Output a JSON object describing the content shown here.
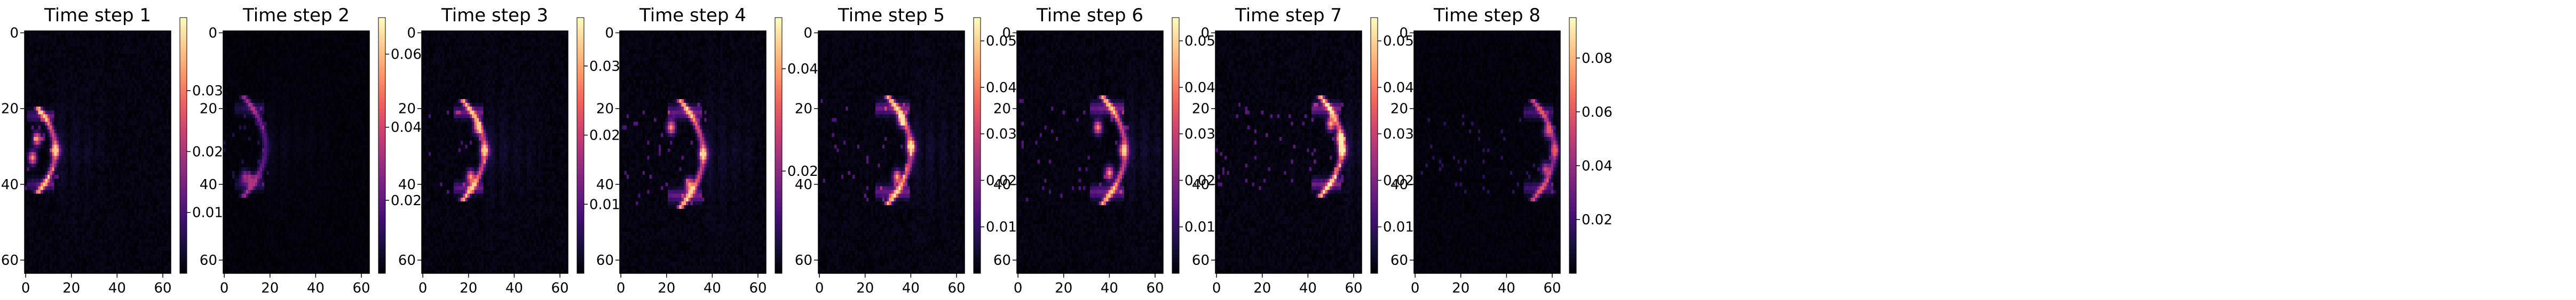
{
  "figure": {
    "colormap": "magma",
    "background": "#ffffff",
    "colors": {
      "cmap_stops": [
        "#000004",
        "#180f3d",
        "#440f76",
        "#721f81",
        "#9e2f7f",
        "#cd4071",
        "#f1605d",
        "#fd9668",
        "#feca8d",
        "#fcfdbf"
      ]
    }
  },
  "chart_data": [
    {
      "type": "heatmap",
      "title": "Time step 1",
      "grid_size": [
        64,
        64
      ],
      "xlim": [
        0,
        63
      ],
      "ylim": [
        63,
        0
      ],
      "y_inverted": true,
      "xticks": [
        0,
        20,
        40,
        60
      ],
      "yticks": [
        0,
        20,
        40,
        60
      ],
      "colorbar": {
        "vmin": 0.0,
        "vmax": 0.042,
        "ticks": [
          0.01,
          0.02,
          0.03
        ],
        "tick_labels": [
          "0.01",
          "0.02",
          "0.03"
        ]
      },
      "pattern": {
        "description": "bright crescent near left edge",
        "front_x": 13,
        "center_y": 31,
        "half_height": 9,
        "trail_x_end": 34,
        "peak": 0.038,
        "peak_spots": [
          [
            13,
            31
          ],
          [
            5,
            28
          ],
          [
            3,
            33
          ]
        ]
      }
    },
    {
      "type": "heatmap",
      "title": "Time step 2",
      "grid_size": [
        64,
        64
      ],
      "xlim": [
        0,
        63
      ],
      "ylim": [
        63,
        0
      ],
      "y_inverted": true,
      "xticks": [
        0,
        20,
        40,
        60
      ],
      "yticks": [
        0,
        20,
        40,
        60
      ],
      "colorbar": {
        "vmin": 0.0,
        "vmax": 0.07,
        "ticks": [
          0.02,
          0.04,
          0.06
        ],
        "tick_labels": [
          "0.02",
          "0.04",
          "0.06"
        ]
      },
      "pattern": {
        "description": "dim crescent outline",
        "front_x": 18,
        "center_y": 30,
        "half_height": 10,
        "trail_x_end": 46,
        "peak": 0.034,
        "peak_spots": [
          [
            12,
            39
          ],
          [
            9,
            38
          ]
        ]
      }
    },
    {
      "type": "heatmap",
      "title": "Time step 3",
      "grid_size": [
        64,
        64
      ],
      "xlim": [
        0,
        63
      ],
      "ylim": [
        63,
        0
      ],
      "y_inverted": true,
      "xticks": [
        0,
        20,
        40,
        60
      ],
      "yticks": [
        0,
        20,
        40,
        60
      ],
      "colorbar": {
        "vmin": 0.0,
        "vmax": 0.037,
        "ticks": [
          0.01,
          0.02,
          0.03
        ],
        "tick_labels": [
          "0.01",
          "0.02",
          "0.03"
        ]
      },
      "pattern": {
        "description": "crescent front",
        "front_x": 27,
        "center_y": 31,
        "half_height": 10,
        "trail_x_end": 52,
        "peak": 0.033,
        "peak_spots": [
          [
            27,
            31
          ],
          [
            21,
            38
          ],
          [
            24,
            25
          ]
        ]
      }
    },
    {
      "type": "heatmap",
      "title": "Time step 4",
      "grid_size": [
        64,
        64
      ],
      "xlim": [
        0,
        63
      ],
      "ylim": [
        63,
        0
      ],
      "y_inverted": true,
      "xticks": [
        0,
        20,
        40,
        60
      ],
      "yticks": [
        0,
        20,
        40,
        60
      ],
      "colorbar": {
        "vmin": 0.0,
        "vmax": 0.05,
        "ticks": [
          0.02,
          0.04
        ],
        "tick_labels": [
          "0.02",
          "0.04"
        ]
      },
      "pattern": {
        "description": "crescent front",
        "front_x": 36,
        "center_y": 32,
        "half_height": 11,
        "trail_x_end": 58,
        "peak": 0.046,
        "peak_spots": [
          [
            36,
            32
          ],
          [
            30,
            40
          ],
          [
            22,
            25
          ]
        ]
      }
    },
    {
      "type": "heatmap",
      "title": "Time step 5",
      "grid_size": [
        64,
        64
      ],
      "xlim": [
        0,
        63
      ],
      "ylim": [
        63,
        0
      ],
      "y_inverted": true,
      "xticks": [
        0,
        20,
        40,
        60
      ],
      "yticks": [
        0,
        20,
        40,
        60
      ],
      "colorbar": {
        "vmin": 0.0,
        "vmax": 0.055,
        "ticks": [
          0.01,
          0.02,
          0.03,
          0.04,
          0.05
        ],
        "tick_labels": [
          "0.01",
          "0.02",
          "0.03",
          "0.04",
          "0.05"
        ]
      },
      "pattern": {
        "description": "crescent front",
        "front_x": 40,
        "center_y": 31,
        "half_height": 11,
        "trail_x_end": 60,
        "peak": 0.052,
        "peak_spots": [
          [
            36,
            23
          ],
          [
            40,
            30
          ],
          [
            34,
            38
          ]
        ]
      }
    },
    {
      "type": "heatmap",
      "title": "Time step 6",
      "grid_size": [
        64,
        64
      ],
      "xlim": [
        0,
        63
      ],
      "ylim": [
        63,
        0
      ],
      "y_inverted": true,
      "xticks": [
        0,
        20,
        40,
        60
      ],
      "yticks": [
        0,
        20,
        40,
        60
      ],
      "colorbar": {
        "vmin": 0.0,
        "vmax": 0.055,
        "ticks": [
          0.01,
          0.02,
          0.03,
          0.04,
          0.05
        ],
        "tick_labels": [
          "0.01",
          "0.02",
          "0.03",
          "0.04",
          "0.05"
        ]
      },
      "pattern": {
        "description": "crescent front",
        "front_x": 47,
        "center_y": 31,
        "half_height": 11,
        "trail_x_end": 62,
        "peak": 0.05,
        "peak_spots": [
          [
            46,
            31
          ],
          [
            40,
            37
          ],
          [
            35,
            25
          ]
        ]
      }
    },
    {
      "type": "heatmap",
      "title": "Time step 7",
      "grid_size": [
        64,
        64
      ],
      "xlim": [
        0,
        63
      ],
      "ylim": [
        63,
        0
      ],
      "y_inverted": true,
      "xticks": [
        0,
        20,
        40,
        60
      ],
      "yticks": [
        0,
        20,
        40,
        60
      ],
      "colorbar": {
        "vmin": 0.0,
        "vmax": 0.055,
        "ticks": [
          0.01,
          0.02,
          0.03,
          0.04,
          0.05
        ],
        "tick_labels": [
          "0.01",
          "0.02",
          "0.03",
          "0.04",
          "0.05"
        ]
      },
      "pattern": {
        "description": "crescent front",
        "front_x": 55,
        "center_y": 30,
        "half_height": 10,
        "trail_x_end": 63,
        "peak": 0.053,
        "peak_spots": [
          [
            54,
            28
          ],
          [
            55,
            31
          ],
          [
            50,
            24
          ]
        ]
      }
    },
    {
      "type": "heatmap",
      "title": "Time step 8",
      "grid_size": [
        64,
        64
      ],
      "xlim": [
        0,
        63
      ],
      "ylim": [
        63,
        0
      ],
      "y_inverted": true,
      "xticks": [
        0,
        20,
        40,
        60
      ],
      "yticks": [
        0,
        20,
        40,
        60
      ],
      "colorbar": {
        "vmin": 0.0,
        "vmax": 0.095,
        "ticks": [
          0.02,
          0.04,
          0.06,
          0.08
        ],
        "tick_labels": [
          "0.02",
          "0.04",
          "0.06",
          "0.08"
        ]
      },
      "pattern": {
        "description": "crescent front",
        "front_x": 61,
        "center_y": 31,
        "half_height": 10,
        "trail_x_end": 63,
        "peak": 0.06,
        "peak_spots": [
          [
            61,
            31
          ],
          [
            58,
            26
          ],
          [
            57,
            36
          ]
        ]
      }
    }
  ]
}
